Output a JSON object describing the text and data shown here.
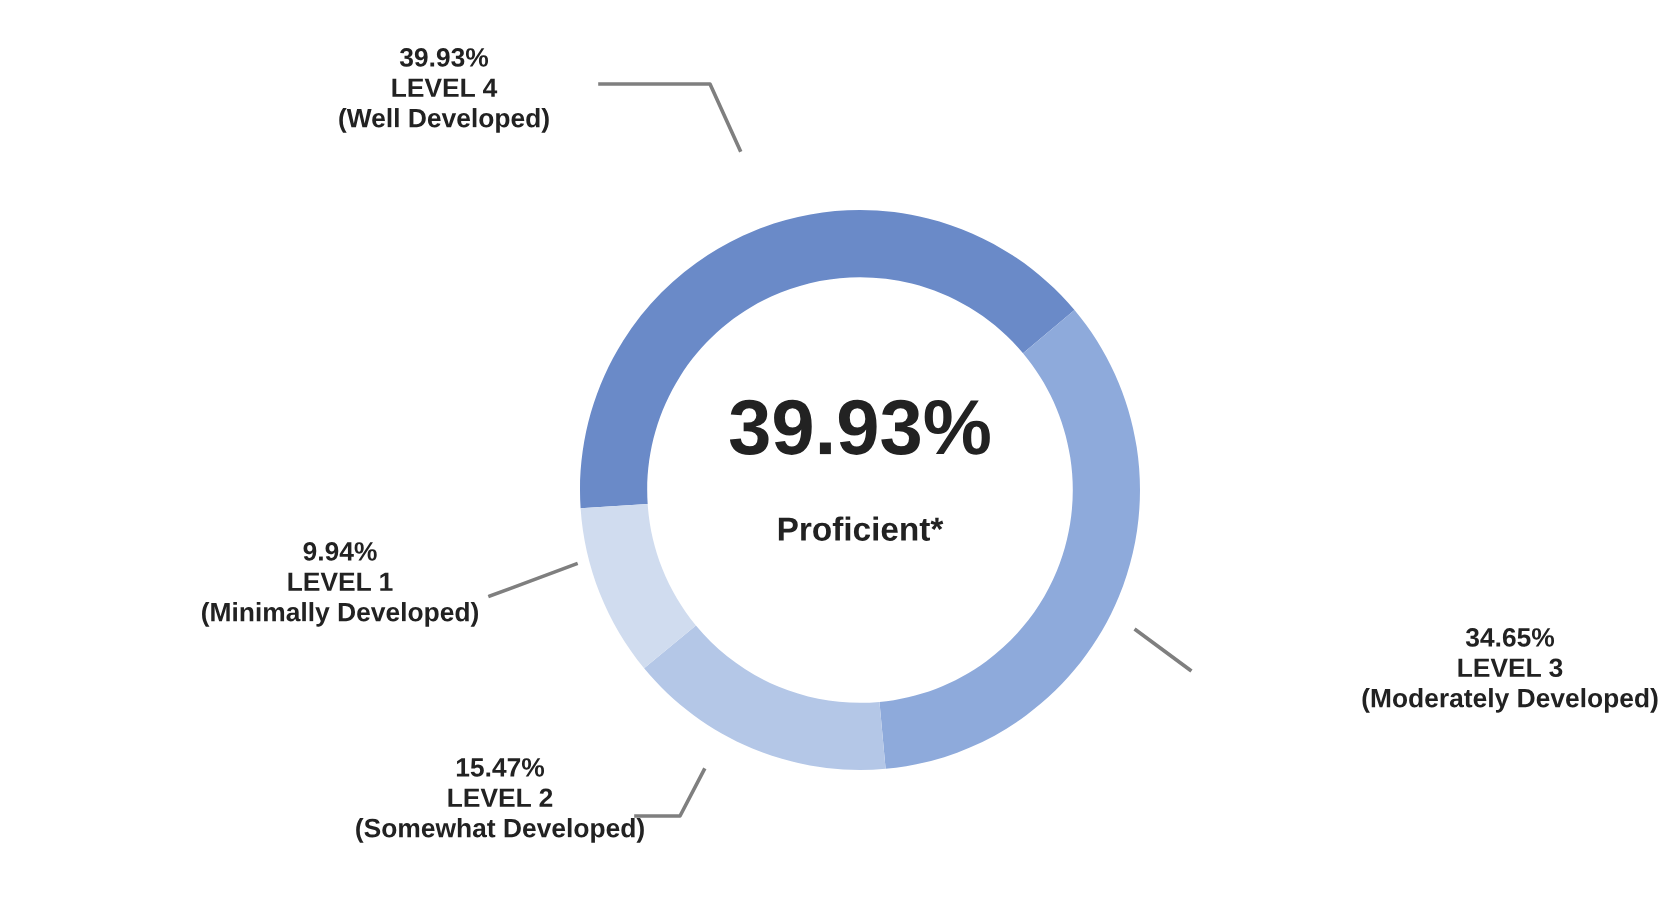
{
  "chart_data": {
    "type": "donut",
    "categories": [
      "LEVEL 4\n(Well Developed)",
      "LEVEL 3\n(Moderately Developed)",
      "LEVEL 2\n(Somewhat Developed)",
      "LEVEL 1\n(Minimally Developed)"
    ],
    "values": [
      39.93,
      34.65,
      15.47,
      9.94
    ],
    "value_labels": [
      "39.93%",
      "34.65%",
      "15.47%",
      "9.94%"
    ],
    "colors": [
      "#6a8ac8",
      "#8eaadb",
      "#b4c7e7",
      "#d0dcef"
    ],
    "annotations": [
      "39.93%",
      "Proficient*"
    ]
  }
}
